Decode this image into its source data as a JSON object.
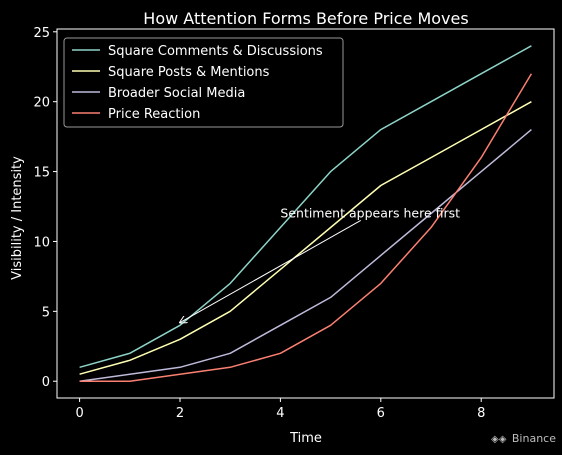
{
  "chart_data": {
    "type": "line",
    "title": "How Attention Forms Before Price Moves",
    "xlabel": "Time",
    "ylabel": "Visibility / Intensity",
    "xlim": [
      -0.45,
      9.45
    ],
    "ylim": [
      -1.2,
      25.2
    ],
    "x_ticks": [
      0,
      2,
      4,
      6,
      8
    ],
    "y_ticks": [
      0,
      5,
      10,
      15,
      20,
      25
    ],
    "grid": false,
    "legend_position": "top-left",
    "x": [
      0,
      1,
      2,
      3,
      4,
      5,
      6,
      7,
      8,
      9
    ],
    "series": [
      {
        "name": "Square Comments & Discussions",
        "color": "#8dd3c7",
        "values": [
          1,
          2,
          4,
          7,
          11,
          15,
          18,
          20,
          22,
          24
        ]
      },
      {
        "name": "Square Posts & Mentions",
        "color": "#ffffb3",
        "values": [
          0.5,
          1.5,
          3,
          5,
          8,
          11,
          14,
          16,
          18,
          20
        ]
      },
      {
        "name": "Broader Social Media",
        "color": "#bebada",
        "values": [
          0,
          0.5,
          1,
          2,
          4,
          6,
          9,
          12,
          15,
          18
        ]
      },
      {
        "name": "Price Reaction",
        "color": "#fb8072",
        "values": [
          0,
          0,
          0.5,
          1,
          2,
          4,
          7,
          11,
          16,
          22
        ]
      }
    ],
    "annotation": {
      "text": "Sentiment appears here first",
      "text_at": [
        4,
        12
      ],
      "arrow_from": [
        5.6,
        11.5
      ],
      "arrow_to": [
        2,
        4.2
      ]
    }
  },
  "watermark": {
    "icon": "binance-logo-icon",
    "text": "Binance"
  }
}
